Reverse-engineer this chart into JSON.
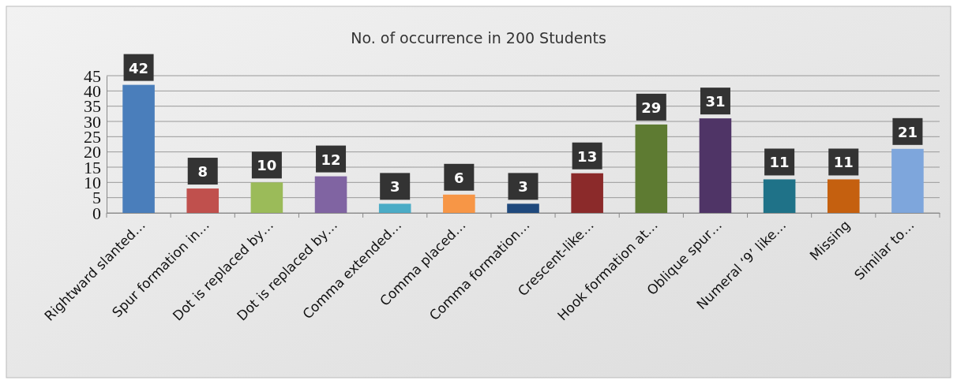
{
  "chart_data": {
    "type": "bar",
    "title": "No. of occurrence in 200 Students",
    "categories": [
      "Rightward slanted…",
      "Spur formation in…",
      "Dot is replaced by…",
      "Dot is replaced by…",
      "Comma extended…",
      "Comma placed…",
      "Comma formation…",
      "Crescent-like…",
      "Hook formation at…",
      "Oblique spur…",
      "Numeral ‘9’ like…",
      "Missing",
      "Similar to…"
    ],
    "values": [
      42,
      8,
      10,
      12,
      3,
      6,
      3,
      13,
      29,
      31,
      11,
      11,
      21
    ],
    "colors": [
      "#4a7ebb",
      "#c0504d",
      "#9bbb59",
      "#8064a2",
      "#4bacc6",
      "#f79646",
      "#1f497d",
      "#8b2a2a",
      "#5e7b32",
      "#4f3466",
      "#1f7288",
      "#c5600f",
      "#7ea6dc"
    ],
    "ylim": [
      0,
      45
    ],
    "yticks": [
      0,
      5,
      10,
      15,
      20,
      25,
      30,
      35,
      40,
      45
    ],
    "grid": "y",
    "data_labels": true
  }
}
